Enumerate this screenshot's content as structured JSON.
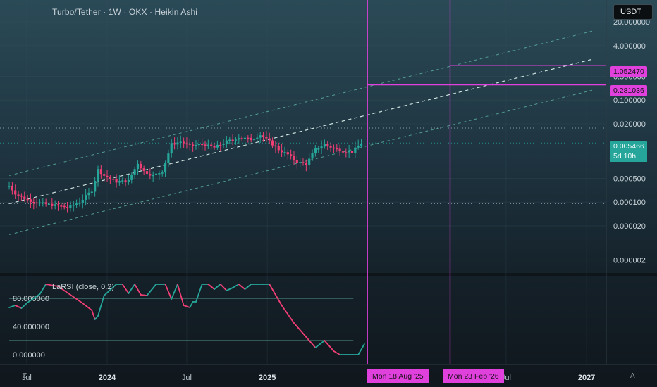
{
  "header": {
    "title": "Turbo/Tether · 1W · OKX · Heikin Ashi",
    "currency": "USDT"
  },
  "indicator": {
    "title": "LaRSI (close, 0.2)"
  },
  "price_axis": {
    "tick_labels": [
      "20.000000",
      "4.000000",
      "0.500000",
      "0.100000",
      "0.020000",
      "0.000500",
      "0.000100",
      "0.000020",
      "0.000002"
    ],
    "tags": [
      {
        "label": "1.052470",
        "value": 1.05247,
        "kind": "magenta"
      },
      {
        "label": "0.281036",
        "value": 0.281036,
        "kind": "magenta"
      },
      {
        "label": "0.005466",
        "value": 0.005466,
        "kind": "teal"
      }
    ],
    "countdown": "5d 10h"
  },
  "indicator_axis": {
    "tick_labels": [
      "80.000000",
      "40.000000",
      "0.000000"
    ]
  },
  "time_axis": {
    "labels": [
      {
        "text": "Jul",
        "bold": false
      },
      {
        "text": "2024",
        "bold": true
      },
      {
        "text": "Jul",
        "bold": false
      },
      {
        "text": "2025",
        "bold": true
      },
      {
        "text": "Jul",
        "bold": false
      },
      {
        "text": "2027",
        "bold": true
      }
    ],
    "date_tags": [
      "Mon 18 Aug '25",
      "Mon 23 Feb '26"
    ]
  },
  "corners": {
    "left": "Z",
    "right": "A"
  },
  "colors": {
    "up": "#26a69a",
    "down": "#ef3e74",
    "magenta": "#e040dc",
    "channel": "#5fb7a6",
    "midline": "#cfe3e0",
    "grid": "#35505a"
  },
  "chart_data": [
    {
      "type": "candlestick",
      "title": "Turbo/Tether · 1W · OKX · Heikin Ashi",
      "yscale": "log",
      "ylim": [
        1.2e-06,
        60
      ],
      "x_range": [
        "2023-05-01",
        "2027-02-15"
      ],
      "series": [
        {
          "x": [
            "2023-05-22",
            "2023-06-05",
            "2023-06-19",
            "2023-07-10",
            "2023-08-07",
            "2023-09-04",
            "2023-10-02",
            "2023-10-30",
            "2023-11-27",
            "2023-12-11",
            "2023-12-25",
            "2024-01-22",
            "2024-02-19",
            "2024-03-11",
            "2024-03-25",
            "2024-04-15",
            "2024-05-06",
            "2024-05-27",
            "2024-06-17",
            "2024-07-08",
            "2024-08-05",
            "2024-09-02",
            "2024-09-30",
            "2024-10-28",
            "2024-11-25",
            "2024-12-16",
            "2025-01-06",
            "2025-01-27",
            "2025-02-17",
            "2025-03-10",
            "2025-03-31",
            "2025-04-21",
            "2025-05-12",
            "2025-06-02",
            "2025-06-23",
            "2025-07-14",
            "2025-08-04"
          ],
          "close": [
            0.0003,
            0.00018,
            0.00014,
            0.00011,
            9e-05,
            8e-05,
            7e-05,
            0.0001,
            0.00022,
            0.0009,
            0.0006,
            0.0004,
            0.00042,
            0.0014,
            0.0008,
            0.0006,
            0.0008,
            0.005,
            0.006,
            0.0045,
            0.005,
            0.004,
            0.006,
            0.008,
            0.007,
            0.0095,
            0.006,
            0.0035,
            0.0025,
            0.0015,
            0.0013,
            0.0035,
            0.005,
            0.0038,
            0.0032,
            0.003,
            0.0055
          ]
        }
      ],
      "annotations": {
        "vertical_lines": [
          "2025-08-18",
          "2026-02-23"
        ],
        "horizontal_targets": [
          0.281036,
          1.05247
        ],
        "dotted_levels": [
          0.015,
          0.005466,
          9e-05
        ],
        "channel": {
          "start": [
            "2023-05-22",
            9e-05
          ],
          "end": [
            "2027-01-15",
            1.6
          ]
        }
      }
    },
    {
      "type": "line",
      "title": "LaRSI (close, 0.2)",
      "ylim": [
        -6,
        100
      ],
      "levels": [
        80,
        20
      ],
      "x": [
        "2023-05-22",
        "2023-06-05",
        "2023-06-19",
        "2023-07-03",
        "2023-07-17",
        "2023-07-31",
        "2023-08-14",
        "2023-09-11",
        "2023-10-09",
        "2023-11-06",
        "2023-11-27",
        "2023-12-04",
        "2023-12-11",
        "2023-12-25",
        "2024-01-08",
        "2024-01-22",
        "2024-02-05",
        "2024-02-19",
        "2024-03-04",
        "2024-03-18",
        "2024-04-01",
        "2024-04-22",
        "2024-05-13",
        "2024-05-27",
        "2024-06-10",
        "2024-06-24",
        "2024-07-08",
        "2024-07-15",
        "2024-07-22",
        "2024-08-05",
        "2024-08-19",
        "2024-09-02",
        "2024-09-16",
        "2024-09-30",
        "2024-10-14",
        "2024-10-28",
        "2024-11-11",
        "2024-11-25",
        "2024-12-09",
        "2024-12-23",
        "2025-01-06",
        "2025-02-03",
        "2025-03-03",
        "2025-03-31",
        "2025-04-21",
        "2025-05-12",
        "2025-06-02",
        "2025-06-16",
        "2025-07-07",
        "2025-07-28",
        "2025-08-11"
      ],
      "values": [
        67,
        70,
        66,
        74,
        80,
        86,
        100,
        97,
        85,
        73,
        63,
        50,
        55,
        84,
        92,
        100,
        100,
        87,
        100,
        85,
        84,
        100,
        100,
        79,
        100,
        70,
        67,
        75,
        75,
        100,
        100,
        93,
        100,
        91,
        95,
        100,
        93,
        100,
        100,
        100,
        100,
        70,
        45,
        25,
        10,
        20,
        5,
        0,
        0,
        0,
        15
      ]
    }
  ]
}
